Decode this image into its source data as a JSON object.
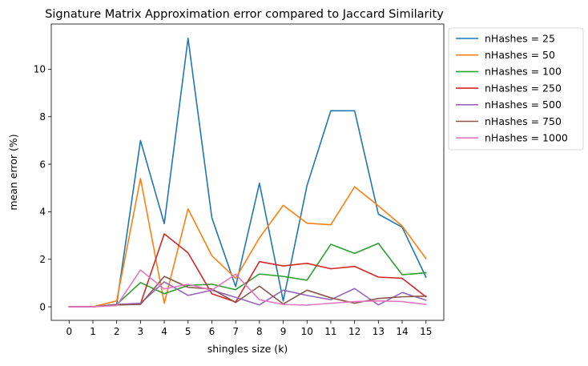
{
  "chart_data": {
    "type": "line",
    "title": "Signature Matrix Approximation error compared to Jaccard Similarity",
    "xlabel": "shingles size (k)",
    "ylabel": "mean error (%)",
    "xlim": [
      -0.75,
      15.75
    ],
    "ylim": [
      -0.57,
      11.9
    ],
    "x": [
      0,
      1,
      2,
      3,
      4,
      5,
      6,
      7,
      8,
      9,
      10,
      11,
      12,
      13,
      14,
      15
    ],
    "x_ticks": [
      0,
      1,
      2,
      3,
      4,
      5,
      6,
      7,
      8,
      9,
      10,
      11,
      12,
      13,
      14,
      15
    ],
    "y_ticks": [
      0,
      2,
      4,
      6,
      8,
      10
    ],
    "grid": false,
    "legend_position": "outside-top-right",
    "series": [
      {
        "name": "nHashes = 25",
        "color": "#1f77b4",
        "values": [
          0,
          0,
          0.1,
          7.0,
          3.5,
          11.3,
          3.75,
          0.85,
          5.2,
          0.25,
          5.1,
          8.25,
          8.25,
          3.9,
          3.35,
          1.25
        ]
      },
      {
        "name": "nHashes = 50",
        "color": "#ff7f0e",
        "values": [
          0,
          0,
          0.25,
          5.4,
          0.15,
          4.12,
          2.15,
          1.2,
          2.9,
          4.27,
          3.52,
          3.45,
          5.05,
          4.25,
          3.4,
          2.03
        ]
      },
      {
        "name": "nHashes = 100",
        "color": "#2ca02c",
        "values": [
          0,
          0,
          0.1,
          1.02,
          0.55,
          0.9,
          0.95,
          0.72,
          1.38,
          1.28,
          1.12,
          2.63,
          2.25,
          2.67,
          1.35,
          1.43
        ]
      },
      {
        "name": "nHashes = 250",
        "color": "#d62728",
        "values": [
          0,
          0,
          0.08,
          0.12,
          3.07,
          2.27,
          0.55,
          0.2,
          1.9,
          1.72,
          1.83,
          1.6,
          1.7,
          1.25,
          1.2,
          0.42
        ]
      },
      {
        "name": "nHashes = 500",
        "color": "#9467bd",
        "values": [
          0,
          0,
          0.1,
          0.15,
          1.05,
          0.48,
          0.7,
          0.4,
          0.08,
          0.7,
          0.48,
          0.3,
          0.77,
          0.08,
          0.6,
          0.28
        ]
      },
      {
        "name": "nHashes = 750",
        "color": "#8c564b",
        "values": [
          0,
          0,
          0.08,
          0.1,
          1.28,
          0.82,
          0.75,
          0.18,
          0.87,
          0.12,
          0.7,
          0.38,
          0.15,
          0.35,
          0.42,
          0.45
        ]
      },
      {
        "name": "nHashes = 1000",
        "color": "#e377c2",
        "values": [
          0,
          0,
          0.05,
          1.55,
          0.75,
          0.95,
          0.7,
          1.37,
          0.3,
          0.1,
          0.07,
          0.15,
          0.22,
          0.25,
          0.22,
          0.1
        ]
      }
    ]
  }
}
